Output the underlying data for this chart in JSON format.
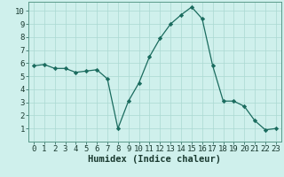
{
  "x": [
    0,
    1,
    2,
    3,
    4,
    5,
    6,
    7,
    8,
    9,
    10,
    11,
    12,
    13,
    14,
    15,
    16,
    17,
    18,
    19,
    20,
    21,
    22,
    23
  ],
  "y": [
    5.8,
    5.9,
    5.6,
    5.6,
    5.3,
    5.4,
    5.5,
    4.8,
    1.0,
    3.1,
    4.5,
    6.5,
    7.9,
    9.0,
    9.7,
    10.3,
    9.4,
    5.8,
    3.1,
    3.1,
    2.7,
    1.6,
    0.9,
    1.0
  ],
  "line_color": "#1a6b5e",
  "marker": "D",
  "marker_size": 2.2,
  "bg_color": "#cff0ec",
  "grid_color": "#aad8d2",
  "xlabel": "Humidex (Indice chaleur)",
  "xlabel_fontsize": 7.5,
  "tick_fontsize": 6.5,
  "ylim": [
    0,
    10.7
  ],
  "xlim": [
    -0.5,
    23.5
  ],
  "yticks": [
    1,
    2,
    3,
    4,
    5,
    6,
    7,
    8,
    9,
    10
  ],
  "xticks": [
    0,
    1,
    2,
    3,
    4,
    5,
    6,
    7,
    8,
    9,
    10,
    11,
    12,
    13,
    14,
    15,
    16,
    17,
    18,
    19,
    20,
    21,
    22,
    23
  ]
}
